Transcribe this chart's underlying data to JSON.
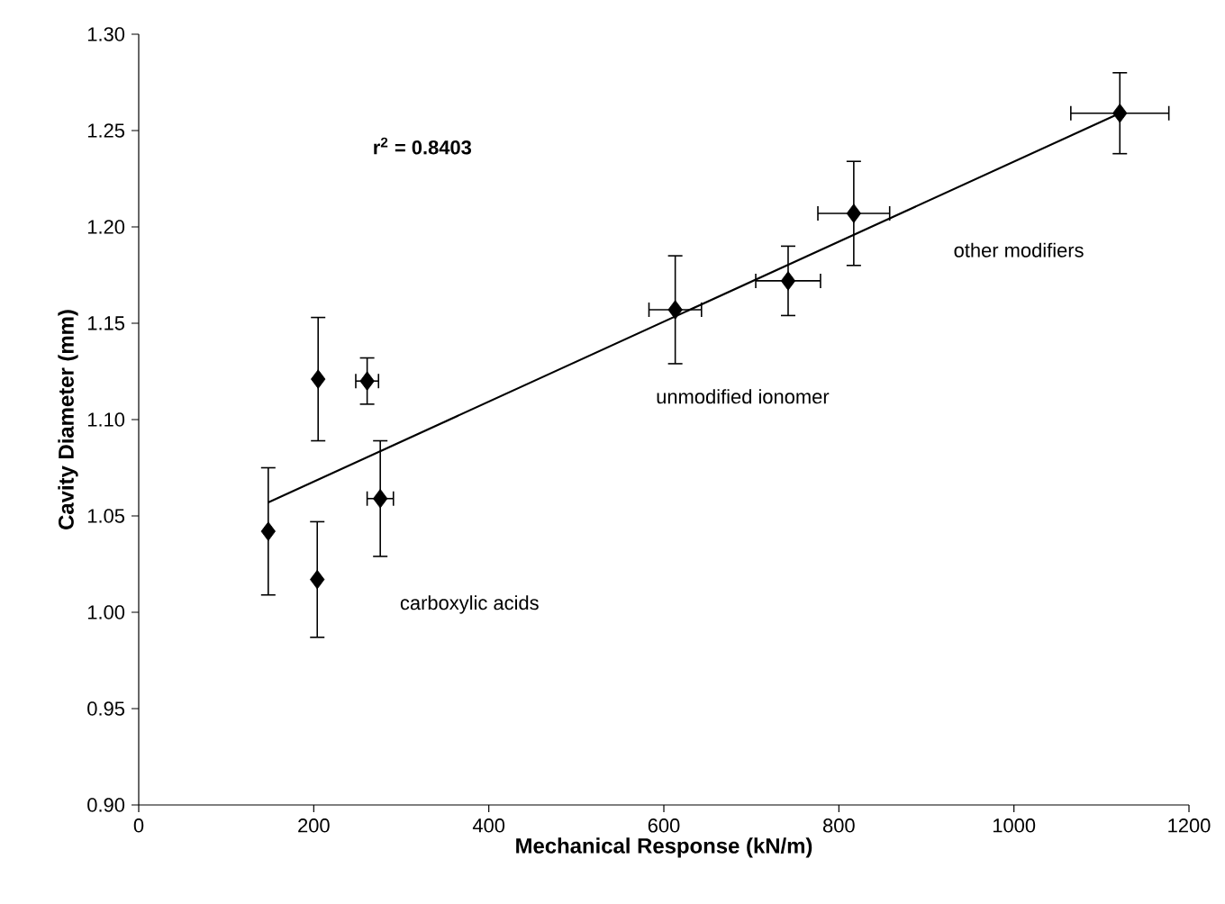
{
  "chart_data": {
    "type": "scatter",
    "xlabel": "Mechanical Response (kN/m)",
    "ylabel": "Cavity Diameter (mm)",
    "annotations": [
      "r$^{2}$ = 0.8403",
      "carboxylic acids",
      "unmodified ionomer",
      "other modifiers"
    ],
    "xlim": [
      0,
      1200
    ],
    "xticks": [
      0,
      200,
      400,
      600,
      800,
      1000,
      1200
    ],
    "ylim": [
      0.9,
      1.3
    ],
    "yticks": [
      {
        "value": 0.9,
        "label": "0.90"
      },
      {
        "value": 0.95,
        "label": "0.95"
      },
      {
        "value": 1.0,
        "label": "1.00"
      },
      {
        "value": 1.05,
        "label": "1.05"
      },
      {
        "value": 1.1,
        "label": "1.10"
      },
      {
        "value": 1.15,
        "label": "1.15"
      },
      {
        "value": 1.2,
        "label": "1.20"
      },
      {
        "value": 1.25,
        "label": "1.25"
      },
      {
        "value": 1.3,
        "label": "1.30"
      }
    ],
    "grid": false,
    "marker": "diamond",
    "series": [
      {
        "color": "#000000",
        "x": [
          148,
          204,
          205,
          261,
          276,
          613,
          742,
          817,
          1121
        ],
        "values": [
          1.042,
          1.017,
          1.121,
          1.12,
          1.059,
          1.157,
          1.172,
          1.207,
          1.259
        ],
        "errors": [
          0.033,
          0.03,
          0.032,
          0.012,
          0.03,
          0.028,
          0.018,
          0.027,
          0.021
        ],
        "xerrors": [
          null,
          null,
          null,
          13,
          15,
          30,
          37,
          41,
          56
        ]
      },
      {
        "type": "line",
        "color": "#000000",
        "marker": "none",
        "line_style": "solid",
        "x": [
          148,
          1121
        ],
        "values": [
          1.057,
          1.259
        ]
      }
    ]
  }
}
